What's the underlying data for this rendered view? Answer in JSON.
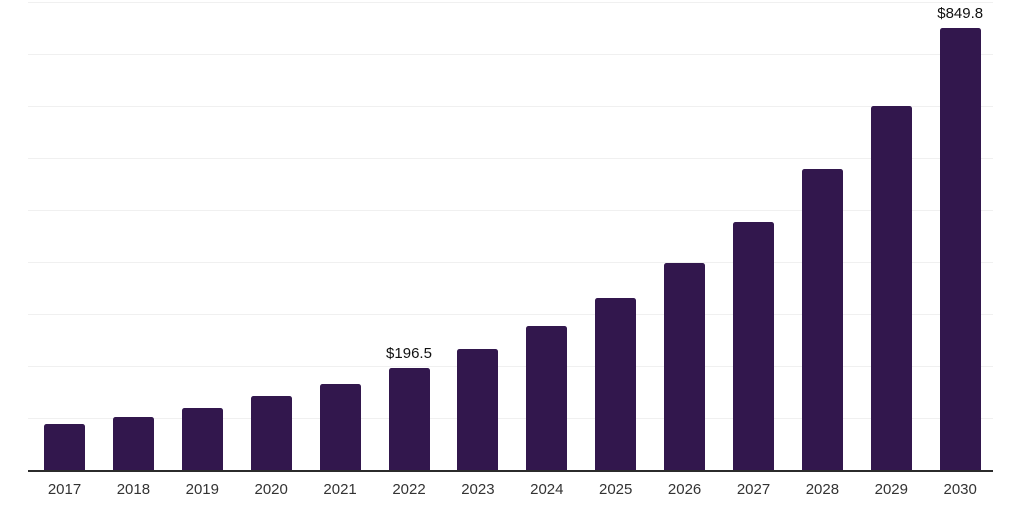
{
  "colors": {
    "background": "#ffffff",
    "bar": "#32174d",
    "axis_line": "#2b2b2b",
    "gridline": "#f0f0f0",
    "tick_label": "#333333",
    "data_label": "#111111"
  },
  "chart_data": {
    "type": "bar",
    "title": "",
    "xlabel": "",
    "ylabel": "",
    "categories": [
      "2017",
      "2018",
      "2019",
      "2020",
      "2021",
      "2022",
      "2023",
      "2024",
      "2025",
      "2026",
      "2027",
      "2028",
      "2029",
      "2030"
    ],
    "values": [
      88.5,
      102.0,
      119.2,
      142.3,
      165.4,
      196.5,
      232.6,
      276.9,
      330.7,
      398.0,
      476.8,
      578.7,
      699.8,
      849.8
    ],
    "data_labels": [
      {
        "category": "2022",
        "text": "$196.5"
      },
      {
        "category": "2030",
        "text": "$849.8"
      }
    ],
    "ylim": [
      0,
      900
    ],
    "grid": {
      "visible": true,
      "interval": 100,
      "axis_labels_visible": false
    },
    "legend": "none"
  }
}
